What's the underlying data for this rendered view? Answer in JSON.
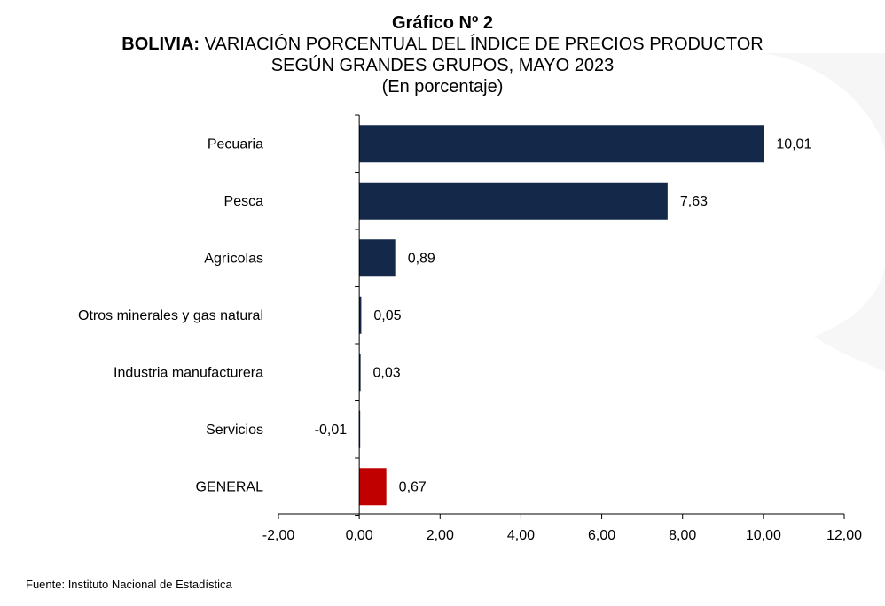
{
  "header": {
    "title": "Gráfico Nº 2",
    "subtitle_bold": "BOLIVIA:",
    "subtitle_rest": " VARIACIÓN PORCENTUAL DEL ÍNDICE DE PRECIOS PRODUCTOR",
    "subtitle_line2": "SEGÚN GRANDES GRUPOS, MAYO 2023",
    "unit_note": "(En porcentaje)"
  },
  "source": "Fuente: Instituto Nacional de Estadística",
  "colors": {
    "bar": "#14294a",
    "highlight": "#c00000",
    "axis": "#000000"
  },
  "chart_data": {
    "type": "bar",
    "orientation": "horizontal",
    "title": "",
    "xlabel": "",
    "ylabel": "",
    "categories": [
      "Pecuaria",
      "Pesca",
      "Agrícolas",
      "Otros minerales y gas natural",
      "Industria manufacturera",
      "Servicios",
      "GENERAL"
    ],
    "values": [
      10.01,
      7.63,
      0.89,
      0.05,
      0.03,
      -0.01,
      0.67
    ],
    "value_labels": [
      "10,01",
      "7,63",
      "0,89",
      "0,05",
      "0,03",
      "-0,01",
      "0,67"
    ],
    "highlight_category": "GENERAL",
    "xlim": [
      -2,
      12
    ],
    "xticks": [
      -2,
      0,
      2,
      4,
      6,
      8,
      10,
      12
    ],
    "xtick_labels": [
      "-2,00",
      "0,00",
      "2,00",
      "4,00",
      "6,00",
      "8,00",
      "10,00",
      "12,00"
    ],
    "grid": false,
    "legend": "none"
  }
}
